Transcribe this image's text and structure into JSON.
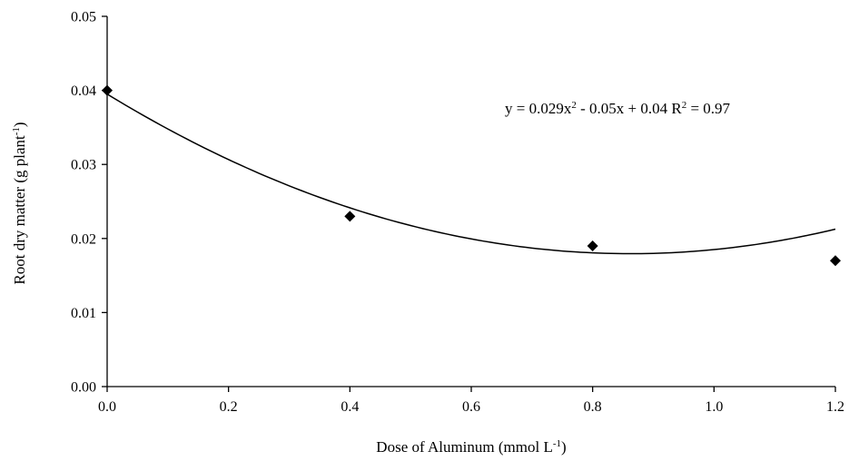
{
  "chart_data": {
    "type": "scatter",
    "xlabel": {
      "main": "Dose of Aluminum (mmol L",
      "sup": "-1",
      "end": ")"
    },
    "ylabel": {
      "main": "Root dry matter (g plant",
      "sup": "-1",
      "end": ")"
    },
    "xlim": [
      0,
      1.2
    ],
    "ylim": [
      0,
      0.05
    ],
    "x_ticks": [
      "0.0",
      "0.2",
      "0.4",
      "0.6",
      "0.8",
      "1.0",
      "1.2"
    ],
    "y_ticks": [
      "0.00",
      "0.01",
      "0.02",
      "0.03",
      "0.04",
      "0.05"
    ],
    "grid": false,
    "legend": "none",
    "marker": "diamond",
    "color": "#000000",
    "points": [
      {
        "x": 0.0,
        "y": 0.04
      },
      {
        "x": 0.4,
        "y": 0.023
      },
      {
        "x": 0.8,
        "y": 0.019
      },
      {
        "x": 1.2,
        "y": 0.017
      }
    ],
    "trendline": {
      "type": "polynomial",
      "a": 0.029,
      "b": -0.05,
      "c": 0.0395,
      "equation_text": {
        "p1": "y = 0.029x",
        "sup": "2",
        "p2": " - 0.05x + 0.04 R",
        "sup2": "2",
        "p3": " = 0.97"
      }
    }
  }
}
